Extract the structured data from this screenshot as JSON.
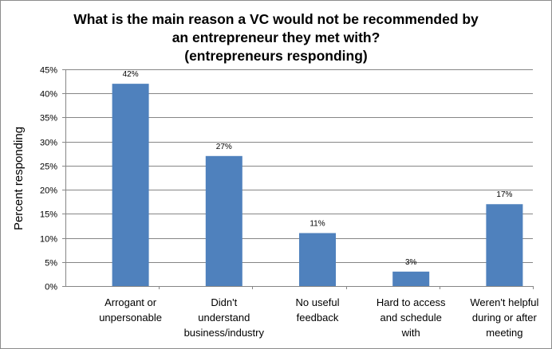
{
  "chart_data": {
    "type": "bar",
    "title_lines": [
      "What is the main reason a VC would not be recommended by",
      "an entrepreneur they met with?",
      "(entrepreneurs responding)"
    ],
    "xlabel": "",
    "ylabel": "Percent responding",
    "ylim": [
      0,
      45
    ],
    "yticks": [
      "0%",
      "5%",
      "10%",
      "15%",
      "20%",
      "25%",
      "30%",
      "35%",
      "40%",
      "45%"
    ],
    "grid": true,
    "legend": "none",
    "categories": [
      [
        "Arrogant or",
        "unpersonable"
      ],
      [
        "Didn't",
        "understand",
        "business/industry"
      ],
      [
        "No useful",
        "feedback"
      ],
      [
        "Hard to access",
        "and schedule",
        "with"
      ],
      [
        "Weren't helpful",
        "during or after",
        "meeting"
      ]
    ],
    "values": [
      42,
      27,
      11,
      3,
      17
    ],
    "data_labels": [
      "42%",
      "27%",
      "11%",
      "3%",
      "17%"
    ],
    "colors": {
      "bar": "#4f81bd",
      "grid": "#868686",
      "axis": "#868686"
    }
  }
}
